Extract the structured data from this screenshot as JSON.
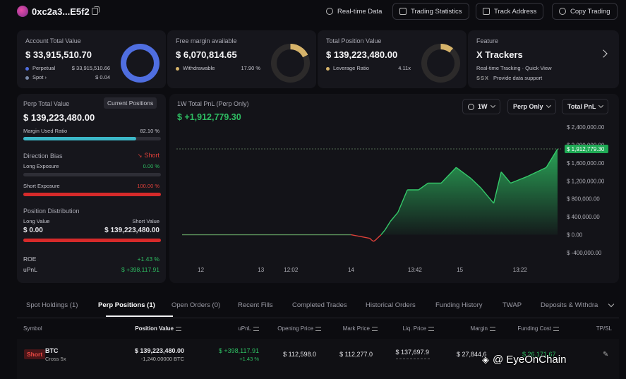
{
  "header": {
    "address": "0xc2a3...E5f2",
    "buttons": {
      "realtime": "Real-time Data",
      "trading_stats": "Trading Statistics",
      "track": "Track Address",
      "copy": "Copy Trading"
    }
  },
  "account": {
    "title": "Account Total Value",
    "value": "$ 33,915,510.70",
    "rows": [
      {
        "label": "Perpetual",
        "value": "$ 33,915,510.66",
        "color": "#4f6ee0"
      },
      {
        "label": "Spot",
        "arrow": "›",
        "value": "$ 0.04",
        "color": "#7a8aa8"
      }
    ],
    "donut_perp_pct": 100
  },
  "margin": {
    "title": "Free margin available",
    "value": "$ 6,070,814.65",
    "row_label": "Withdrawable",
    "row_value": "17.90 %",
    "color": "#d6b36a",
    "pct": 17.9
  },
  "position": {
    "title": "Total Position Value",
    "value": "$ 139,223,480.00",
    "row_label": "Leverage Ratio",
    "row_value": "4.11x",
    "color": "#d6b36a",
    "pct": 11
  },
  "feature": {
    "label": "Feature",
    "title": "X Trackers",
    "subtitle": "Real-time Tracking · Quick View",
    "provider_logo": "SSX",
    "provider": "Provide data support"
  },
  "perp": {
    "title": "Perp Total Value",
    "badge": "Current Positions",
    "value": "$ 139,223,480.00",
    "margin_used_label": "Margin Used Ratio",
    "margin_used_value": "82.10 %",
    "margin_used_pct": 82.1,
    "direction_label": "Direction Bias",
    "direction_value": "Short",
    "long_exp_label": "Long Exposure",
    "long_exp_value": "0.00 %",
    "long_exp_pct": 0,
    "short_exp_label": "Short Exposure",
    "short_exp_value": "100.00 %",
    "short_exp_pct": 100,
    "distribution_label": "Position Distribution",
    "long_value_label": "Long Value",
    "short_value_label": "Short Value",
    "long_value": "$ 0.00",
    "short_value": "$ 139,223,480.00",
    "roe_label": "ROE",
    "roe_value": "+1.43 %",
    "upnl_label": "uPnL",
    "upnl_value": "$ +398,117.91"
  },
  "pnl_chart": {
    "title": "1W Total PnL (Perp Only)",
    "value": "$ +1,912,779.30",
    "controls": {
      "range": "1W",
      "scope": "Perp Only",
      "metric": "Total PnL"
    }
  },
  "chart_data": {
    "type": "area",
    "title": "1W Total PnL (Perp Only)",
    "y_ticks": [
      "$ 2,400,000.00",
      "$ 2,000,000.00",
      "$ 1,600,000.00",
      "$ 1,200,000.00",
      "$ 800,000.00",
      "$ 400,000.00",
      "$ 0.00",
      "$ -400,000.00"
    ],
    "y_tick_values": [
      2400000,
      2000000,
      1600000,
      1200000,
      800000,
      400000,
      0,
      -400000
    ],
    "ylim": [
      -400000,
      2400000
    ],
    "x_ticks": [
      "12",
      "13",
      "12:02",
      "14",
      "13:42",
      "15",
      "13:22"
    ],
    "x_tick_pos": [
      0.05,
      0.21,
      0.29,
      0.45,
      0.62,
      0.74,
      0.9
    ],
    "last_value_label": "$ 1,912,779.30",
    "last_value": 1912779.3,
    "x": [
      0.0,
      0.45,
      0.5,
      0.505,
      0.51,
      0.515,
      0.52,
      0.53,
      0.54,
      0.555,
      0.575,
      0.6,
      0.63,
      0.655,
      0.69,
      0.73,
      0.77,
      0.795,
      0.83,
      0.85,
      0.875,
      0.92,
      0.97,
      1.0
    ],
    "y": [
      0,
      0,
      -80000,
      -120000,
      -150000,
      -120000,
      -80000,
      0,
      100000,
      300000,
      500000,
      1000000,
      1000000,
      1150000,
      1150000,
      1500000,
      1250000,
      1050000,
      700000,
      1400000,
      1150000,
      1300000,
      1500000,
      1912779
    ],
    "grid": false
  },
  "tabs": [
    {
      "label": "Spot Holdings (1)",
      "active": false
    },
    {
      "label": "Perp Positions (1)",
      "active": true
    },
    {
      "label": "Open Orders (0)",
      "active": false
    },
    {
      "label": "Recent Fills",
      "active": false
    },
    {
      "label": "Completed Trades",
      "active": false
    },
    {
      "label": "Historical Orders",
      "active": false
    },
    {
      "label": "Funding History",
      "active": false
    },
    {
      "label": "TWAP",
      "active": false
    },
    {
      "label": "Deposits & Withdra",
      "active": false
    }
  ],
  "table": {
    "columns": [
      "Symbol",
      "Position Value",
      "uPnL",
      "Opening Price",
      "Mark Price",
      "Liq. Price",
      "Margin",
      "Funding Cost",
      "TP/SL"
    ],
    "row": {
      "side": "Short",
      "symbol": "BTC",
      "mode": "Cross 5x",
      "position_value": "$ 139,223,480.00",
      "position_size": "-1,240.00000 BTC",
      "upnl": "$ +398,117.91",
      "upnl_pct": "+1.43 %",
      "opening_price": "$ 112,598.0",
      "mark_price": "$ 112,277.0",
      "liq_price": "$ 137,697.9",
      "margin": "$ 27,844,6",
      "funding_cost": "$ 26,171.67"
    }
  },
  "watermark": "@ EyeOnChain"
}
